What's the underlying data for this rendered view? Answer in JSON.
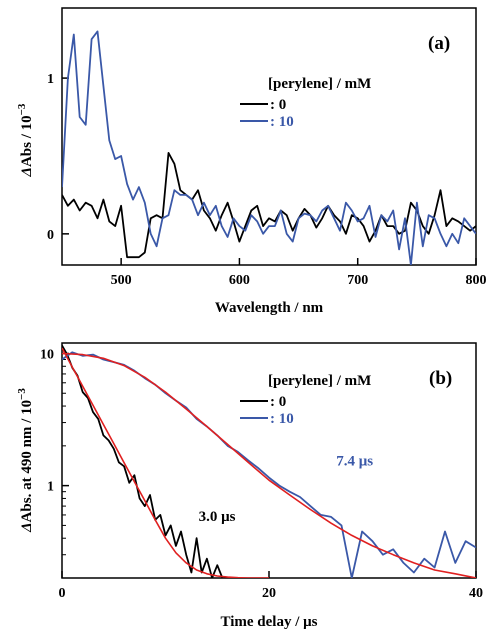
{
  "chart_data": [
    {
      "panel_label": "(a)",
      "type": "line",
      "xlabel": "Wavelength / nm",
      "ylabel_prefix": "Δ",
      "ylabel": "Abs / 10",
      "ylabel_sup": "−3",
      "xlim": [
        450,
        800
      ],
      "ylim": [
        -0.2,
        1.45
      ],
      "xticks": [
        500,
        600,
        700,
        800
      ],
      "yticks": [
        0,
        1
      ],
      "legend": {
        "title": "[perylene] / mM",
        "location": "top-right"
      },
      "series": [
        {
          "name": ": 0",
          "color": "#000000",
          "x": [
            450,
            455,
            460,
            465,
            470,
            475,
            480,
            485,
            490,
            495,
            500,
            505,
            510,
            515,
            520,
            525,
            530,
            535,
            540,
            545,
            550,
            555,
            560,
            565,
            570,
            575,
            580,
            585,
            590,
            595,
            600,
            605,
            610,
            615,
            620,
            625,
            630,
            635,
            640,
            645,
            650,
            655,
            660,
            665,
            670,
            675,
            680,
            685,
            690,
            695,
            700,
            705,
            710,
            715,
            720,
            725,
            730,
            735,
            740,
            745,
            750,
            755,
            760,
            765,
            770,
            775,
            780,
            785,
            790,
            795,
            800
          ],
          "y": [
            0.25,
            0.18,
            0.22,
            0.15,
            0.2,
            0.18,
            0.1,
            0.22,
            0.08,
            0.05,
            0.18,
            -0.15,
            -0.15,
            -0.15,
            -0.12,
            0.1,
            0.12,
            0.1,
            0.52,
            0.45,
            0.28,
            0.25,
            0.22,
            0.28,
            0.15,
            0.1,
            0.02,
            0.12,
            0.2,
            0.08,
            -0.05,
            0.05,
            0.15,
            0.18,
            0.05,
            0.1,
            0.08,
            0.15,
            0.12,
            0.02,
            0.1,
            0.16,
            0.12,
            0.04,
            0.1,
            0.18,
            0.12,
            0.08,
            0.0,
            0.12,
            0.1,
            0.05,
            -0.05,
            0.02,
            0.12,
            0.05,
            0.05,
            0.0,
            0.02,
            0.2,
            0.15,
            0.05,
            0.0,
            0.12,
            0.28,
            0.05,
            0.1,
            0.08,
            0.05,
            0.02,
            0.05
          ]
        },
        {
          "name": ": 10",
          "color": "#3a58a8",
          "x": [
            450,
            455,
            460,
            465,
            470,
            475,
            480,
            485,
            490,
            495,
            500,
            505,
            510,
            515,
            520,
            525,
            530,
            535,
            540,
            545,
            550,
            555,
            560,
            565,
            570,
            575,
            580,
            585,
            590,
            595,
            600,
            605,
            610,
            615,
            620,
            625,
            630,
            635,
            640,
            645,
            650,
            655,
            660,
            665,
            670,
            675,
            680,
            685,
            690,
            695,
            700,
            705,
            710,
            715,
            720,
            725,
            730,
            735,
            740,
            745,
            750,
            755,
            760,
            765,
            770,
            775,
            780,
            785,
            790,
            795,
            800
          ],
          "y": [
            0.3,
            1.0,
            1.28,
            0.75,
            0.7,
            1.25,
            1.3,
            0.95,
            0.6,
            0.48,
            0.5,
            0.32,
            0.22,
            0.3,
            0.2,
            0.0,
            -0.08,
            0.1,
            0.12,
            0.28,
            0.25,
            0.25,
            0.22,
            0.12,
            0.2,
            0.12,
            0.18,
            0.05,
            -0.02,
            0.1,
            0.05,
            0.02,
            0.12,
            0.08,
            0.0,
            0.05,
            0.05,
            0.15,
            0.0,
            -0.05,
            0.1,
            0.13,
            0.12,
            0.08,
            0.15,
            0.18,
            0.1,
            0.02,
            0.2,
            0.15,
            0.08,
            0.1,
            0.18,
            -0.02,
            0.12,
            0.08,
            0.15,
            -0.1,
            0.1,
            -0.2,
            0.2,
            -0.08,
            0.12,
            0.1,
            0.0,
            -0.08,
            0.0,
            -0.06,
            0.1,
            0.05,
            0.0
          ]
        }
      ]
    },
    {
      "panel_label": "(b)",
      "type": "line",
      "xlabel": "Time delay / μs",
      "ylabel_prefix": "Δ",
      "ylabel": "Abs. at 490 nm / 10",
      "ylabel_sup": "−3",
      "xlim": [
        0,
        40
      ],
      "ylim": [
        0.2,
        12
      ],
      "yscale": "log",
      "xticks": [
        0,
        20,
        40
      ],
      "yticks": [
        1,
        10
      ],
      "legend": {
        "title": "[perylene] / mM",
        "location": "top-right"
      },
      "annotations": [
        {
          "text": "3.0 μs",
          "x": 13.2,
          "y": 0.54,
          "color": "#000000"
        },
        {
          "text": "7.4 μs",
          "x": 26.5,
          "y": 1.42,
          "color": "#3a58a8"
        }
      ],
      "series": [
        {
          "name": ": 0",
          "color": "#000000",
          "x": [
            0.0,
            0.5,
            1.0,
            1.5,
            2.0,
            2.5,
            3.0,
            3.5,
            4.0,
            4.5,
            5.0,
            5.5,
            6.0,
            6.5,
            7.0,
            7.5,
            8.0,
            8.5,
            9.0,
            9.5,
            10.0,
            10.5,
            11.0,
            11.5,
            12.0,
            12.5,
            13.0,
            13.5,
            14.0,
            14.5,
            15.0,
            15.5
          ],
          "y": [
            11.5,
            9.8,
            7.8,
            6.8,
            5.1,
            4.6,
            3.6,
            3.2,
            2.4,
            2.2,
            1.9,
            1.5,
            1.4,
            1.05,
            1.2,
            0.8,
            0.7,
            0.85,
            0.55,
            0.6,
            0.42,
            0.5,
            0.35,
            0.45,
            0.3,
            0.22,
            0.4,
            0.22,
            0.28,
            0.2,
            0.25,
            0.2
          ]
        },
        {
          "name": ": 10",
          "color": "#3a58a8",
          "x": [
            0,
            1,
            2,
            3,
            4,
            5,
            6,
            7,
            8,
            9,
            10,
            11,
            12,
            13,
            14,
            15,
            16,
            17,
            18,
            19,
            20,
            21,
            22,
            23,
            24,
            25,
            26,
            27,
            28,
            29,
            30,
            31,
            32,
            33,
            34,
            35,
            36,
            37,
            38,
            39,
            40
          ],
          "y": [
            9.0,
            10.2,
            9.6,
            9.8,
            9.0,
            8.6,
            8.2,
            7.4,
            6.5,
            5.8,
            5.0,
            4.4,
            3.9,
            3.2,
            2.8,
            2.4,
            2.0,
            1.8,
            1.55,
            1.35,
            1.15,
            1.0,
            0.9,
            0.82,
            0.7,
            0.6,
            0.58,
            0.5,
            0.2,
            0.45,
            0.38,
            0.3,
            0.33,
            0.26,
            0.22,
            0.28,
            0.24,
            0.45,
            0.26,
            0.38,
            0.34
          ]
        },
        {
          "name": "fit 3.0 μs",
          "color": "#e02020",
          "x": [
            0,
            1,
            2,
            3,
            4,
            5,
            6,
            7,
            8,
            9,
            10,
            11,
            12,
            13,
            14,
            15,
            16,
            17,
            18,
            19,
            20
          ],
          "y": [
            11.0,
            7.88,
            5.65,
            4.05,
            2.9,
            2.08,
            1.49,
            1.07,
            0.77,
            0.55,
            0.4,
            0.31,
            0.26,
            0.23,
            0.215,
            0.207,
            0.203,
            0.201,
            0.2,
            0.2,
            0.2
          ]
        },
        {
          "name": "fit 7.4 μs",
          "color": "#e02020",
          "x": [
            0,
            2,
            4,
            6,
            8,
            10,
            12,
            14,
            16,
            18,
            20,
            22,
            24,
            26,
            28,
            30,
            32,
            34,
            36,
            38,
            40
          ],
          "y": [
            10.0,
            9.8,
            9.2,
            8.1,
            6.6,
            5.1,
            3.8,
            2.8,
            2.05,
            1.5,
            1.1,
            0.85,
            0.66,
            0.52,
            0.42,
            0.35,
            0.3,
            0.26,
            0.23,
            0.215,
            0.2
          ]
        }
      ]
    }
  ]
}
